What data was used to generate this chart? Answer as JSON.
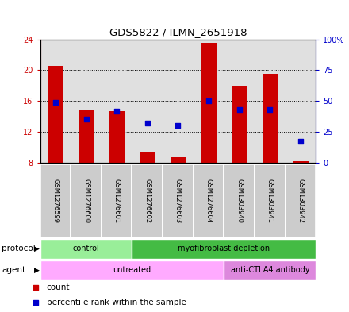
{
  "title": "GDS5822 / ILMN_2651918",
  "samples": [
    "GSM1276599",
    "GSM1276600",
    "GSM1276601",
    "GSM1276602",
    "GSM1276603",
    "GSM1276604",
    "GSM1303940",
    "GSM1303941",
    "GSM1303942"
  ],
  "count_values": [
    20.5,
    14.8,
    14.7,
    9.3,
    8.7,
    23.5,
    18.0,
    19.5,
    8.2
  ],
  "percentile_values": [
    49,
    35,
    42,
    32,
    30,
    50,
    43,
    43,
    17
  ],
  "ylim_left": [
    8,
    24
  ],
  "ylim_right": [
    0,
    100
  ],
  "yticks_left": [
    8,
    12,
    16,
    20,
    24
  ],
  "yticks_right": [
    0,
    25,
    50,
    75,
    100
  ],
  "ytick_labels_right": [
    "0",
    "25",
    "50",
    "75",
    "100%"
  ],
  "bar_color": "#cc0000",
  "percentile_color": "#0000cc",
  "bar_bottom": 8.0,
  "protocol_groups": [
    {
      "label": "control",
      "start": 0,
      "end": 3,
      "color": "#99ee99"
    },
    {
      "label": "myofibroblast depletion",
      "start": 3,
      "end": 9,
      "color": "#44bb44"
    }
  ],
  "agent_groups": [
    {
      "label": "untreated",
      "start": 0,
      "end": 6,
      "color": "#ffaaff"
    },
    {
      "label": "anti-CTLA4 antibody",
      "start": 6,
      "end": 9,
      "color": "#dd88dd"
    }
  ],
  "protocol_label": "protocol",
  "agent_label": "agent",
  "legend_count_label": "count",
  "legend_percentile_label": "percentile rank within the sample",
  "axis_color_left": "#cc0000",
  "axis_color_right": "#0000cc",
  "grid_color": "#000000",
  "plot_bg_color": "#e0e0e0",
  "label_bg_color": "#cccccc",
  "bar_width": 0.5
}
